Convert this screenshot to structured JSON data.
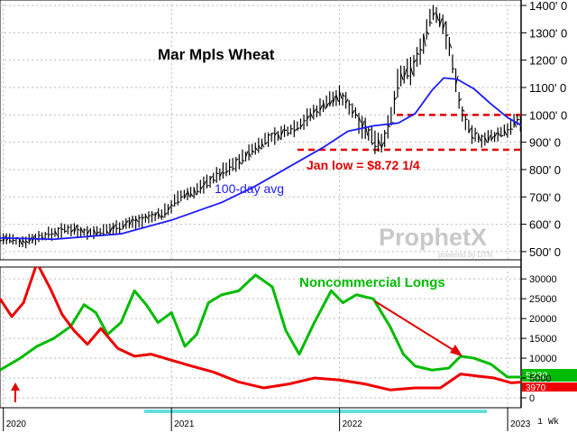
{
  "chart_data": [
    {
      "type": "bar",
      "subtype": "ohlc",
      "title": "Mar Mpls Wheat",
      "y_ticks": [
        "1400' 0",
        "1300' 0",
        "1200' 0",
        "1100' 0",
        "1000' 0",
        "900' 0",
        "800' 0",
        "700' 0",
        "600' 0",
        "500' 0"
      ],
      "ylim": [
        470,
        1420
      ],
      "x_ticks": [
        "2020",
        "2021",
        "2022",
        "2023"
      ],
      "xlim": [
        2019.98,
        2023.08
      ],
      "grid": true,
      "series": [
        {
          "name": "Mar Mpls Wheat",
          "color": "#000000",
          "x": [
            2019.98,
            2020.1,
            2020.25,
            2020.4,
            2020.5,
            2020.6,
            2020.72,
            2020.85,
            2020.95,
            2021.05,
            2021.15,
            2021.25,
            2021.35,
            2021.42,
            2021.48,
            2021.55,
            2021.65,
            2021.75,
            2021.85,
            2021.93,
            2022.0,
            2022.05,
            2022.1,
            2022.18,
            2022.25,
            2022.3,
            2022.35,
            2022.42,
            2022.48,
            2022.55,
            2022.62,
            2022.68,
            2022.72,
            2022.78,
            2022.85,
            2022.92,
            2023.0,
            2023.06,
            2023.1
          ],
          "values": [
            550,
            535,
            560,
            585,
            570,
            575,
            600,
            620,
            640,
            700,
            725,
            770,
            810,
            840,
            870,
            905,
            930,
            960,
            1010,
            1050,
            1070,
            1040,
            1000,
            920,
            900,
            960,
            1130,
            1160,
            1230,
            1380,
            1330,
            1170,
            1020,
            930,
            910,
            920,
            950,
            980,
            960
          ]
        },
        {
          "name": "100-day avg",
          "color": "#1a1aff",
          "x": [
            2019.98,
            2020.3,
            2020.7,
            2021.0,
            2021.3,
            2021.5,
            2021.7,
            2021.9,
            2022.05,
            2022.2,
            2022.35,
            2022.45,
            2022.55,
            2022.62,
            2022.7,
            2022.8,
            2022.9,
            2023.0,
            2023.1
          ],
          "values": [
            550,
            545,
            565,
            615,
            680,
            740,
            810,
            880,
            940,
            960,
            970,
            1005,
            1090,
            1135,
            1130,
            1095,
            1040,
            990,
            955
          ]
        }
      ],
      "reference_lines": [
        {
          "value": 1000,
          "style": "dashed",
          "color": "#e00000"
        },
        {
          "value": 872.25,
          "style": "dashed",
          "color": "#e00000",
          "label": "Jan low = $8.72 1/4"
        }
      ],
      "annotations": [
        "Mar Mpls Wheat",
        "100-day avg",
        "Jan low = $8.72 1/4"
      ],
      "watermark": {
        "text": "ProphetX",
        "tagline": "powered by DTN"
      }
    },
    {
      "type": "line",
      "y_ticks": [
        "30000",
        "25000",
        "20000",
        "15000",
        "10000",
        "5000",
        "0"
      ],
      "ylim": [
        -2500,
        33000
      ],
      "grid": true,
      "series": [
        {
          "name": "Noncommercial Longs",
          "color": "#00bb00",
          "x": [
            2019.98,
            2020.1,
            2020.2,
            2020.3,
            2020.4,
            2020.48,
            2020.55,
            2020.62,
            2020.7,
            2020.78,
            2020.85,
            2020.92,
            2021.0,
            2021.08,
            2021.15,
            2021.22,
            2021.3,
            2021.4,
            2021.5,
            2021.6,
            2021.68,
            2021.76,
            2021.85,
            2021.95,
            2022.02,
            2022.1,
            2022.2,
            2022.3,
            2022.38,
            2022.45,
            2022.55,
            2022.65,
            2022.72,
            2022.8,
            2022.9,
            2023.0,
            2023.1
          ],
          "values": [
            7000,
            10000,
            13000,
            15000,
            18000,
            23500,
            21500,
            16000,
            19000,
            27000,
            23500,
            19000,
            21500,
            13000,
            16000,
            24000,
            26000,
            27000,
            31000,
            28000,
            17000,
            11000,
            19000,
            27000,
            24000,
            26000,
            25000,
            18000,
            11000,
            8000,
            7000,
            7500,
            10500,
            10000,
            8500,
            5230,
            5230
          ]
        },
        {
          "name": "",
          "color": "#ee0000",
          "x": [
            2019.98,
            2020.05,
            2020.12,
            2020.2,
            2020.28,
            2020.35,
            2020.42,
            2020.5,
            2020.58,
            2020.68,
            2020.78,
            2020.88,
            2021.0,
            2021.12,
            2021.25,
            2021.4,
            2021.55,
            2021.7,
            2021.85,
            2022.0,
            2022.15,
            2022.3,
            2022.45,
            2022.6,
            2022.72,
            2022.82,
            2022.92,
            2023.02,
            2023.1
          ],
          "values": [
            25000,
            20500,
            24000,
            34000,
            27500,
            21000,
            17000,
            13500,
            17500,
            12500,
            10500,
            11000,
            9500,
            8000,
            6500,
            4000,
            2500,
            3500,
            5000,
            4500,
            3500,
            2000,
            2500,
            2500,
            6000,
            5500,
            5000,
            3800,
            4000
          ]
        }
      ],
      "annotations": [
        "Noncommercial Longs"
      ],
      "last_value_badges": [
        {
          "text": "5230",
          "color": "#00bb00"
        },
        {
          "text": "3970",
          "color": "#ee0000"
        }
      ]
    }
  ],
  "period_label": "1 Wk"
}
